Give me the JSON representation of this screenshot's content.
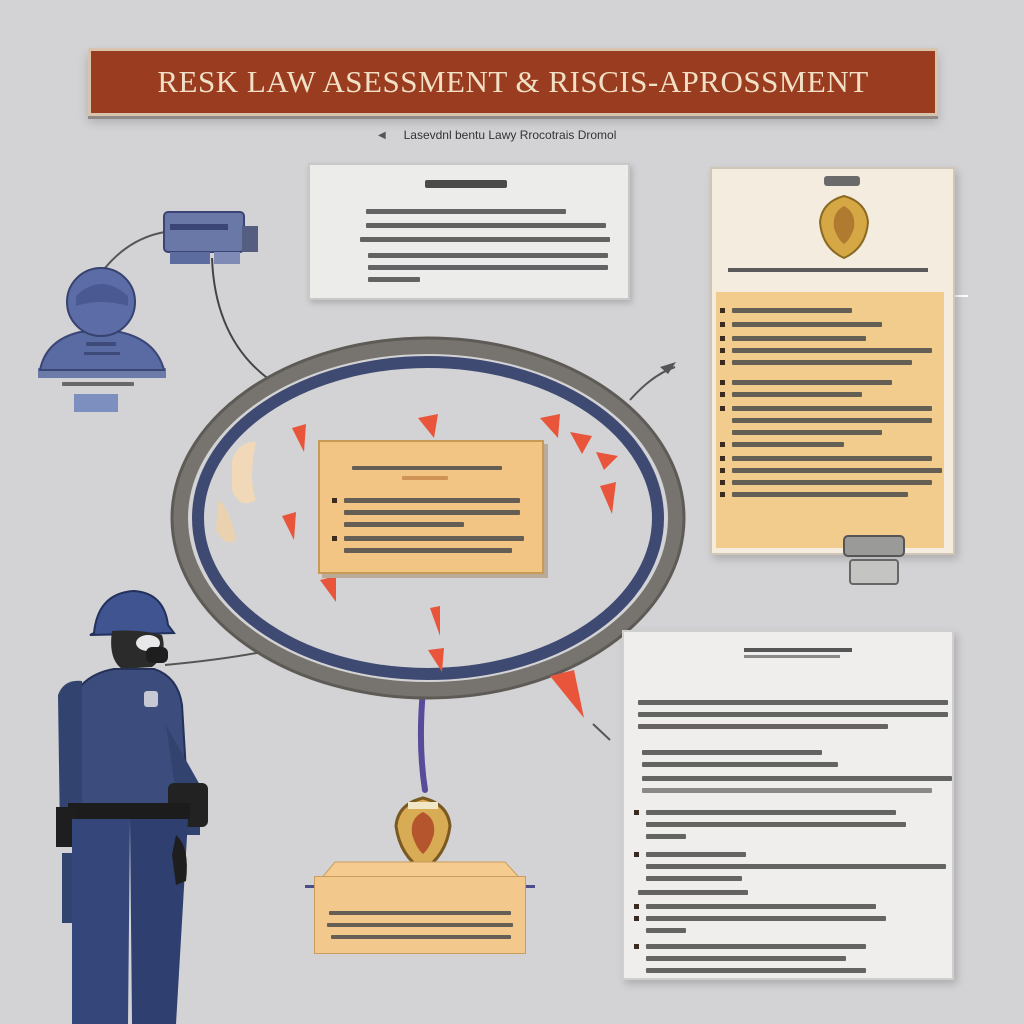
{
  "header": {
    "title": "RESK LAW ASESSMENT & RISCIS-APROSSMENT",
    "subtitle": "Lasevdnl bentu Lawy Rrocotrais Dromol"
  },
  "colors": {
    "background": "#d3d3d5",
    "banner": "#9a3c1f",
    "banner_text": "#f1e0c6",
    "ring_dark": "#3f4a73",
    "ring_metal": "#7d7a76",
    "card": "#f3c585",
    "alert": "#e8553a",
    "uniform": "#3b4c7d"
  },
  "icons": {
    "person": "person-silhouette-icon",
    "camera": "camera-device-icon",
    "badge": "police-badge-icon",
    "crest": "crest-emblem-icon",
    "officer": "police-officer-figure"
  }
}
